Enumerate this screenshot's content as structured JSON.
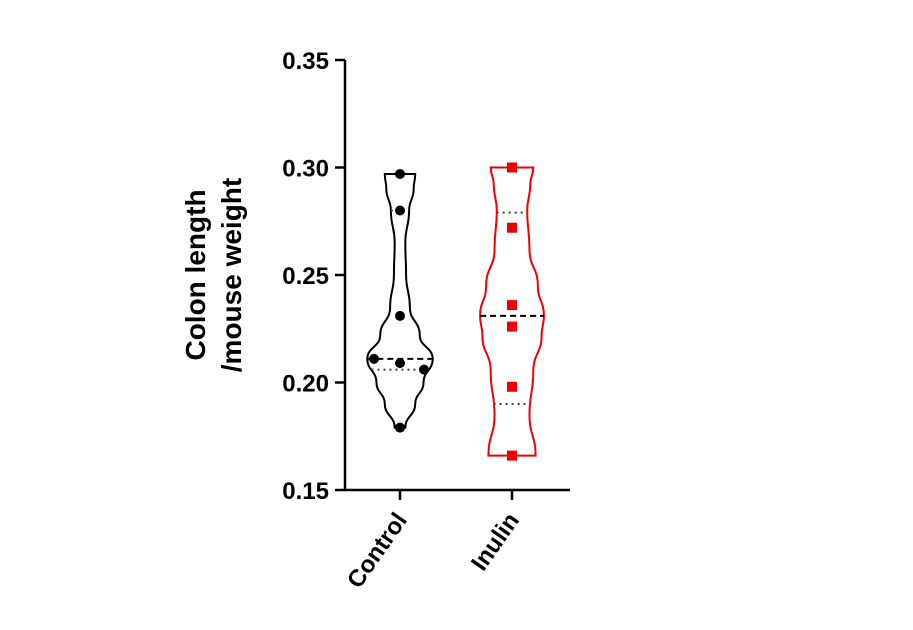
{
  "chart_data": {
    "type": "violin",
    "title": "",
    "ylabel_lines": [
      "Colon length",
      "/mouse weight"
    ],
    "xlabel": "",
    "ylim": [
      0.15,
      0.35
    ],
    "yticks": [
      0.15,
      0.2,
      0.25,
      0.3,
      0.35
    ],
    "ytick_labels": [
      "0.15",
      "0.20",
      "0.25",
      "0.30",
      "0.35"
    ],
    "categories": [
      "Control",
      "Inulin"
    ],
    "groups": [
      {
        "category": "Control",
        "color": "#000000",
        "marker": "circle",
        "points": [
          0.297,
          0.28,
          0.231,
          0.211,
          0.209,
          0.206,
          0.179
        ],
        "median": 0.211,
        "quartiles": [
          0.206,
          0.28
        ],
        "range": [
          0.179,
          0.297
        ],
        "density": [
          [
            0.179,
            0.14
          ],
          [
            0.19,
            0.4
          ],
          [
            0.2,
            0.62
          ],
          [
            0.211,
            0.86
          ],
          [
            0.222,
            0.52
          ],
          [
            0.235,
            0.26
          ],
          [
            0.25,
            0.16
          ],
          [
            0.265,
            0.14
          ],
          [
            0.28,
            0.24
          ],
          [
            0.29,
            0.36
          ],
          [
            0.297,
            0.4
          ]
        ]
      },
      {
        "category": "Inulin",
        "color": "#ee0000",
        "marker": "square",
        "points": [
          0.3,
          0.272,
          0.236,
          0.226,
          0.198,
          0.166
        ],
        "median": 0.231,
        "quartiles": [
          0.19,
          0.279
        ],
        "range": [
          0.166,
          0.3
        ],
        "density": [
          [
            0.166,
            0.62
          ],
          [
            0.185,
            0.46
          ],
          [
            0.205,
            0.56
          ],
          [
            0.222,
            0.78
          ],
          [
            0.231,
            0.84
          ],
          [
            0.245,
            0.68
          ],
          [
            0.262,
            0.46
          ],
          [
            0.28,
            0.4
          ],
          [
            0.292,
            0.48
          ],
          [
            0.3,
            0.56
          ]
        ]
      }
    ]
  }
}
